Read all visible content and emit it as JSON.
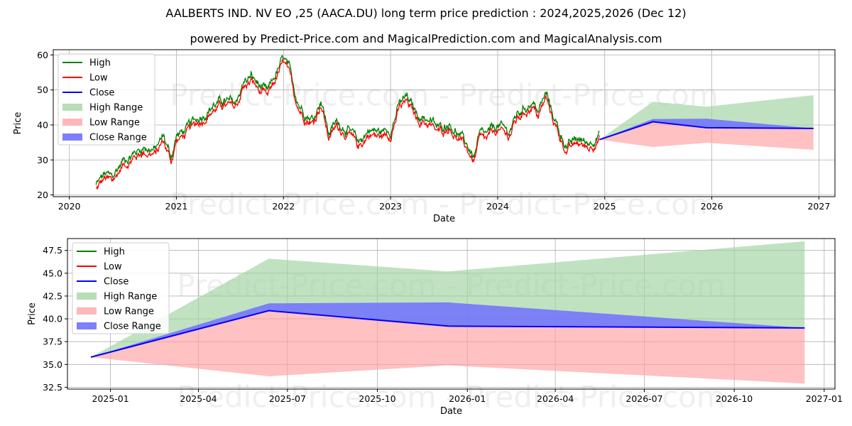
{
  "title": "AALBERTS IND. NV EO ,25 (AACA.DU) long term price prediction : 2024,2025,2026 (Dec 12)",
  "subtitle": "powered by Predict-Price.com and MagicalPrediction.com and MagicalAnalysis.com",
  "watermark": "Predict-Price.com - Predict-Price.com",
  "colors": {
    "high": "#008000",
    "low": "#ff0000",
    "close": "#0000ff",
    "high_range": "#9fd39f",
    "low_range": "#ffa0a0",
    "close_range": "#7070ff",
    "grid": "#b0b0b0"
  },
  "chart_data": [
    {
      "type": "line",
      "xlabel": "Date",
      "ylabel": "Price",
      "xlim": [
        2019.85,
        2027.15
      ],
      "ylim": [
        19.5,
        61.5
      ],
      "xticks": [
        2020,
        2021,
        2022,
        2023,
        2024,
        2025,
        2026,
        2027
      ],
      "xtick_labels": [
        "2020",
        "2021",
        "2022",
        "2023",
        "2024",
        "2025",
        "2026",
        "2027"
      ],
      "yticks": [
        20,
        30,
        40,
        50,
        60
      ],
      "ytick_labels": [
        "20",
        "30",
        "40",
        "50",
        "60"
      ],
      "grid": true,
      "legend_position": "upper-left",
      "legend": [
        "High",
        "Low",
        "Close",
        "High Range",
        "Low Range",
        "Close Range"
      ],
      "history_anchors": {
        "x": [
          2020.25,
          2020.33,
          2020.4,
          2020.5,
          2020.6,
          2020.7,
          2020.8,
          2020.88,
          2020.95,
          2021.0,
          2021.1,
          2021.2,
          2021.35,
          2021.45,
          2021.55,
          2021.62,
          2021.7,
          2021.78,
          2021.85,
          2021.92,
          2022.0,
          2022.05,
          2022.1,
          2022.15,
          2022.2,
          2022.28,
          2022.35,
          2022.42,
          2022.5,
          2022.6,
          2022.7,
          2022.8,
          2022.9,
          2023.0,
          2023.08,
          2023.15,
          2023.25,
          2023.35,
          2023.45,
          2023.55,
          2023.62,
          2023.7,
          2023.78,
          2023.83,
          2023.9,
          2024.0,
          2024.1,
          2024.18,
          2024.25,
          2024.32,
          2024.38,
          2024.45,
          2024.52,
          2024.58,
          2024.65,
          2024.75,
          2024.85,
          2024.95
        ],
        "y": [
          22,
          25,
          24,
          29,
          31,
          33,
          32,
          36,
          30,
          36,
          38,
          41,
          45,
          46,
          45,
          51,
          53,
          50,
          48,
          53,
          58,
          55,
          49,
          45,
          43,
          41,
          47,
          37,
          40,
          38,
          34,
          38,
          37,
          38,
          45,
          47,
          42,
          41,
          38,
          40,
          37,
          34,
          30,
          36,
          36,
          39,
          37,
          42,
          44,
          46,
          43,
          48,
          42,
          37,
          33,
          35,
          34,
          37
        ]
      },
      "forecast": {
        "x": [
          2024.95,
          2025.45,
          2025.95,
          2026.95
        ],
        "close": [
          35.8,
          40.9,
          39.2,
          39.0
        ],
        "high_range_upper": [
          35.8,
          46.6,
          45.2,
          48.5
        ],
        "low_range_lower": [
          35.8,
          33.7,
          34.9,
          32.9
        ],
        "close_range_upper": [
          35.8,
          41.7,
          41.8,
          39.0
        ],
        "close_range_lower": [
          35.8,
          40.9,
          39.2,
          39.0
        ]
      }
    },
    {
      "type": "area",
      "xlabel": "Date",
      "ylabel": "Price",
      "xlim": [
        "2024-11-18",
        "2027-01-12"
      ],
      "ylim": [
        32.3,
        48.8
      ],
      "xticks": [
        "2025-01-01",
        "2025-04-01",
        "2025-07-01",
        "2025-10-01",
        "2026-01-01",
        "2026-04-01",
        "2026-07-01",
        "2026-10-01",
        "2027-01-01"
      ],
      "xtick_labels": [
        "2025-01",
        "2025-04",
        "2025-07",
        "2025-10",
        "2026-01",
        "2026-04",
        "2026-07",
        "2026-10",
        "2027-01"
      ],
      "yticks": [
        32.5,
        35.0,
        37.5,
        40.0,
        42.5,
        45.0,
        47.5
      ],
      "ytick_labels": [
        "32.5",
        "35.0",
        "37.5",
        "40.0",
        "42.5",
        "45.0",
        "47.5"
      ],
      "grid": true,
      "legend_position": "upper-left",
      "legend": [
        "High",
        "Low",
        "Close",
        "High Range",
        "Low Range",
        "Close Range"
      ],
      "x": [
        "2024-12-12",
        "2025-06-12",
        "2025-12-12",
        "2026-12-12"
      ],
      "close": [
        35.8,
        40.9,
        39.2,
        39.0
      ],
      "high_range_upper": [
        35.8,
        46.6,
        45.2,
        48.5
      ],
      "low_range_lower": [
        35.8,
        33.7,
        34.9,
        32.9
      ],
      "close_range_upper": [
        35.8,
        41.7,
        41.8,
        39.0
      ],
      "close_range_lower": [
        35.8,
        40.9,
        39.2,
        39.0
      ]
    }
  ]
}
